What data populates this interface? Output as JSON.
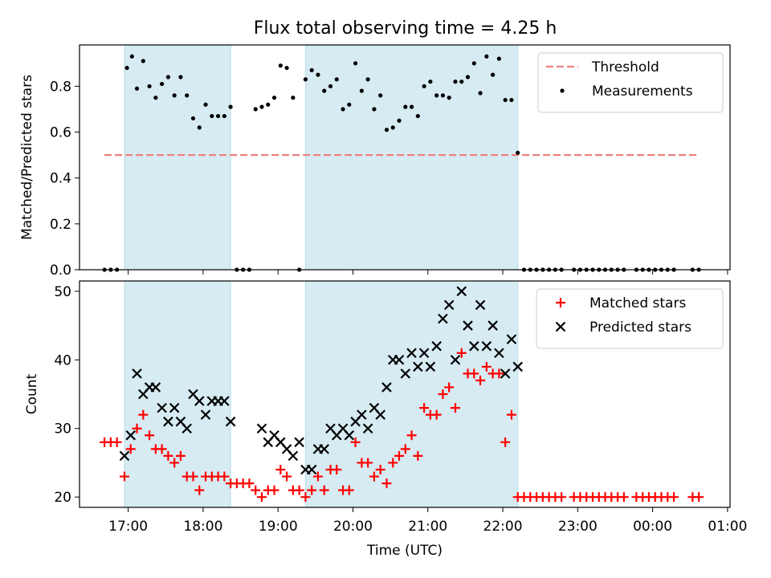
{
  "title": "Flux total observing time = 4.25 h",
  "chart_data": [
    {
      "type": "scatter",
      "ylabel": "Matched/Predicted stars",
      "xlabel": "",
      "ylim": [
        0,
        0.98
      ],
      "yticks": [
        "0.0",
        "0.2",
        "0.4",
        "0.6",
        "0.8"
      ],
      "xlim": [
        "16:21",
        "01:02"
      ],
      "legend_position": "top-right",
      "threshold": {
        "name": "Threshold",
        "value": 0.5,
        "x_start": "16:41",
        "x_end": "00:37",
        "color": "#f08080"
      },
      "observing_windows": [
        [
          "16:57",
          "18:22"
        ],
        [
          "19:22",
          "22:12"
        ]
      ],
      "series": [
        {
          "name": "Measurements",
          "color": "#000000",
          "x": [
            "16:41",
            "16:46",
            "16:51",
            "16:59",
            "17:03",
            "17:07",
            "17:12",
            "17:17",
            "17:22",
            "17:27",
            "17:32",
            "17:37",
            "17:42",
            "17:47",
            "17:52",
            "17:57",
            "18:02",
            "18:07",
            "18:12",
            "18:17",
            "18:22",
            "18:27",
            "18:32",
            "18:37",
            "18:42",
            "18:47",
            "18:52",
            "18:57",
            "19:02",
            "19:07",
            "19:12",
            "19:17",
            "19:22",
            "19:27",
            "19:32",
            "19:37",
            "19:42",
            "19:47",
            "19:52",
            "19:57",
            "20:02",
            "20:07",
            "20:12",
            "20:17",
            "20:22",
            "20:27",
            "20:32",
            "20:37",
            "20:42",
            "20:47",
            "20:52",
            "20:57",
            "21:02",
            "21:07",
            "21:12",
            "21:17",
            "21:22",
            "21:27",
            "21:32",
            "21:37",
            "21:42",
            "21:47",
            "21:52",
            "21:57",
            "22:02",
            "22:07",
            "22:12",
            "22:17",
            "22:22",
            "22:27",
            "22:32",
            "22:37",
            "22:42",
            "22:47",
            "22:57",
            "23:02",
            "23:07",
            "23:12",
            "23:17",
            "23:22",
            "23:27",
            "23:32",
            "23:37",
            "23:47",
            "23:52",
            "23:57",
            "00:02",
            "00:07",
            "00:12",
            "00:17",
            "00:32",
            "00:37"
          ],
          "y": [
            0,
            0,
            0,
            0.88,
            0.93,
            0.79,
            0.91,
            0.8,
            0.75,
            0.81,
            0.84,
            0.76,
            0.84,
            0.76,
            0.66,
            0.62,
            0.72,
            0.67,
            0.67,
            0.67,
            0.71,
            0,
            0,
            0,
            0.7,
            0.71,
            0.72,
            0.75,
            0.89,
            0.88,
            0.75,
            0,
            0.83,
            0.87,
            0.85,
            0.78,
            0.8,
            0.83,
            0.7,
            0.72,
            0.9,
            0.78,
            0.83,
            0.7,
            0.76,
            0.61,
            0.62,
            0.65,
            0.71,
            0.71,
            0.67,
            0.8,
            0.82,
            0.76,
            0.76,
            0.75,
            0.82,
            0.82,
            0.84,
            0.9,
            0.77,
            0.93,
            0.85,
            0.92,
            0.74,
            0.74,
            0.51,
            0,
            0,
            0,
            0,
            0,
            0,
            0,
            0,
            0,
            0,
            0,
            0,
            0,
            0,
            0,
            0,
            0,
            0,
            0,
            0,
            0,
            0,
            0,
            0,
            0
          ]
        }
      ]
    },
    {
      "type": "scatter",
      "ylabel": "Count",
      "xlabel": "Time (UTC)",
      "ylim": [
        18.5,
        51.5
      ],
      "yticks": [
        "20",
        "30",
        "40",
        "50"
      ],
      "xlim": [
        "16:21",
        "01:02"
      ],
      "xticks": [
        "17:00",
        "18:00",
        "19:00",
        "20:00",
        "21:00",
        "22:00",
        "23:00",
        "00:00",
        "01:00"
      ],
      "legend_position": "top-right",
      "observing_windows": [
        [
          "16:57",
          "18:22"
        ],
        [
          "19:22",
          "22:12"
        ]
      ],
      "series": [
        {
          "name": "Matched stars",
          "color": "#ff0000",
          "marker": "plus",
          "x": [
            "16:41",
            "16:46",
            "16:51",
            "16:57",
            "17:02",
            "17:07",
            "17:12",
            "17:17",
            "17:22",
            "17:27",
            "17:32",
            "17:37",
            "17:42",
            "17:47",
            "17:52",
            "17:57",
            "18:02",
            "18:07",
            "18:12",
            "18:17",
            "18:22",
            "18:27",
            "18:32",
            "18:37",
            "18:42",
            "18:47",
            "18:52",
            "18:57",
            "19:02",
            "19:07",
            "19:12",
            "19:17",
            "19:22",
            "19:27",
            "19:32",
            "19:37",
            "19:42",
            "19:47",
            "19:52",
            "19:57",
            "20:02",
            "20:07",
            "20:12",
            "20:17",
            "20:22",
            "20:27",
            "20:32",
            "20:37",
            "20:42",
            "20:47",
            "20:52",
            "20:57",
            "21:02",
            "21:07",
            "21:12",
            "21:17",
            "21:22",
            "21:27",
            "21:32",
            "21:37",
            "21:42",
            "21:47",
            "21:52",
            "21:57",
            "22:02",
            "22:07",
            "22:12",
            "22:17",
            "22:22",
            "22:27",
            "22:32",
            "22:37",
            "22:42",
            "22:47",
            "22:57",
            "23:02",
            "23:07",
            "23:12",
            "23:17",
            "23:22",
            "23:27",
            "23:32",
            "23:37",
            "23:47",
            "23:52",
            "23:57",
            "00:02",
            "00:07",
            "00:12",
            "00:17",
            "00:32",
            "00:37"
          ],
          "y": [
            28,
            28,
            28,
            23,
            27,
            30,
            32,
            29,
            27,
            27,
            26,
            25,
            26,
            23,
            23,
            21,
            23,
            23,
            23,
            23,
            22,
            22,
            22,
            22,
            21,
            20,
            21,
            21,
            24,
            23,
            21,
            21,
            20,
            21,
            23,
            21,
            24,
            24,
            21,
            21,
            28,
            25,
            25,
            23,
            24,
            22,
            25,
            26,
            27,
            29,
            26,
            33,
            32,
            32,
            35,
            36,
            33,
            41,
            38,
            38,
            37,
            39,
            38,
            38,
            28,
            32,
            20,
            20,
            20,
            20,
            20,
            20,
            20,
            20,
            20,
            20,
            20,
            20,
            20,
            20,
            20,
            20,
            20,
            20,
            20,
            20,
            20,
            20,
            20,
            20,
            20,
            20
          ]
        },
        {
          "name": "Predicted stars",
          "color": "#000000",
          "marker": "x",
          "x": [
            "16:57",
            "17:02",
            "17:07",
            "17:12",
            "17:17",
            "17:22",
            "17:27",
            "17:32",
            "17:37",
            "17:42",
            "17:47",
            "17:52",
            "17:57",
            "18:02",
            "18:07",
            "18:12",
            "18:17",
            "18:22",
            "18:47",
            "18:52",
            "18:57",
            "19:02",
            "19:07",
            "19:12",
            "19:17",
            "19:22",
            "19:27",
            "19:32",
            "19:37",
            "19:42",
            "19:47",
            "19:52",
            "19:57",
            "20:02",
            "20:07",
            "20:12",
            "20:17",
            "20:22",
            "20:27",
            "20:32",
            "20:37",
            "20:42",
            "20:47",
            "20:52",
            "20:57",
            "21:02",
            "21:07",
            "21:12",
            "21:17",
            "21:22",
            "21:27",
            "21:32",
            "21:37",
            "21:42",
            "21:47",
            "21:52",
            "21:57",
            "22:02",
            "22:07",
            "22:12"
          ],
          "y": [
            26,
            29,
            38,
            35,
            36,
            36,
            33,
            31,
            33,
            31,
            30,
            35,
            34,
            32,
            34,
            34,
            34,
            31,
            30,
            28,
            29,
            28,
            27,
            26,
            28,
            24,
            24,
            27,
            27,
            30,
            29,
            30,
            29,
            31,
            32,
            30,
            33,
            32,
            36,
            40,
            40,
            38,
            41,
            39,
            41,
            39,
            42,
            46,
            48,
            40,
            50,
            45,
            42,
            48,
            42,
            45,
            41,
            38,
            43,
            39
          ]
        }
      ]
    }
  ]
}
